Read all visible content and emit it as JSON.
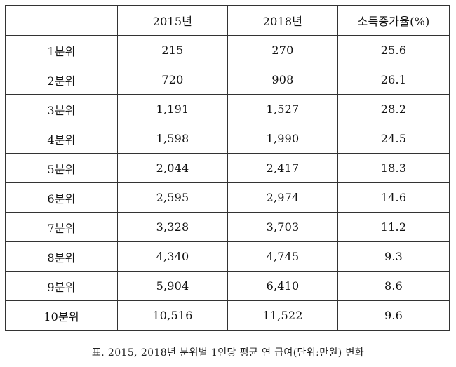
{
  "table": {
    "columns": [
      "",
      "2015년",
      "2018년",
      "소득증가율(%)"
    ],
    "rows": [
      [
        "1분위",
        "215",
        "270",
        "25.6"
      ],
      [
        "2분위",
        "720",
        "908",
        "26.1"
      ],
      [
        "3분위",
        "1,191",
        "1,527",
        "28.2"
      ],
      [
        "4분위",
        "1,598",
        "1,990",
        "24.5"
      ],
      [
        "5분위",
        "2,044",
        "2,417",
        "18.3"
      ],
      [
        "6분위",
        "2,595",
        "2,974",
        "14.6"
      ],
      [
        "7분위",
        "3,328",
        "3,703",
        "11.2"
      ],
      [
        "8분위",
        "4,340",
        "4,745",
        "9.3"
      ],
      [
        "9분위",
        "5,904",
        "6,410",
        "8.6"
      ],
      [
        "10분위",
        "10,516",
        "11,522",
        "9.6"
      ]
    ]
  },
  "caption": "표. 2015, 2018년 분위별 1인당 평균 연 급여(단위:만원) 변화"
}
